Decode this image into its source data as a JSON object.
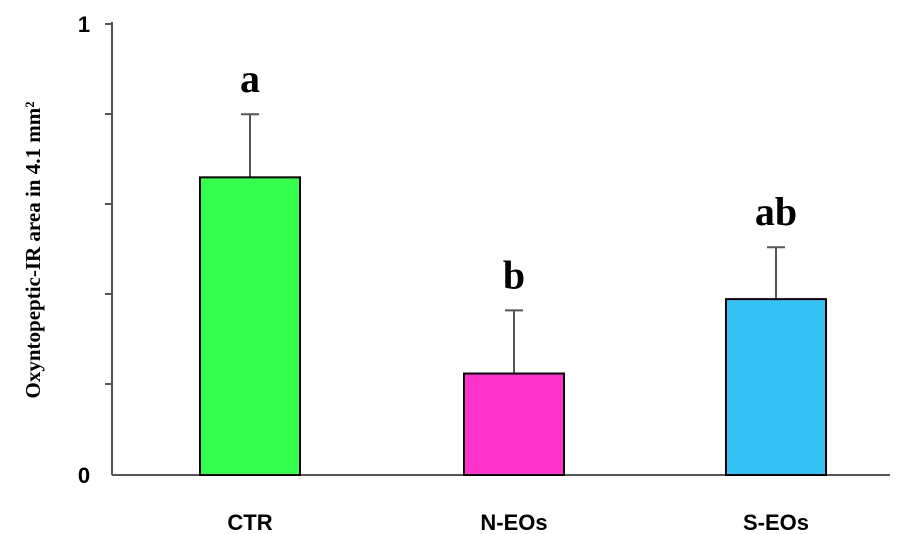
{
  "chart_data": {
    "type": "bar",
    "categories": [
      "CTR",
      "N-EOs",
      "S-EOs"
    ],
    "values": [
      0.66,
      0.225,
      0.39
    ],
    "errors": [
      0.14,
      0.14,
      0.115
    ],
    "significance_labels": [
      "a",
      "b",
      "ab"
    ],
    "bar_colors": [
      "#33ff4d",
      "#ff33cc",
      "#33c4f5"
    ],
    "ylabel": "Oxyntopeptic-IR area in 4.1 mm²",
    "xlabel": "",
    "ylim": [
      0,
      1
    ],
    "yticks": [
      "0",
      "1"
    ],
    "grid": false,
    "legend": "none"
  }
}
